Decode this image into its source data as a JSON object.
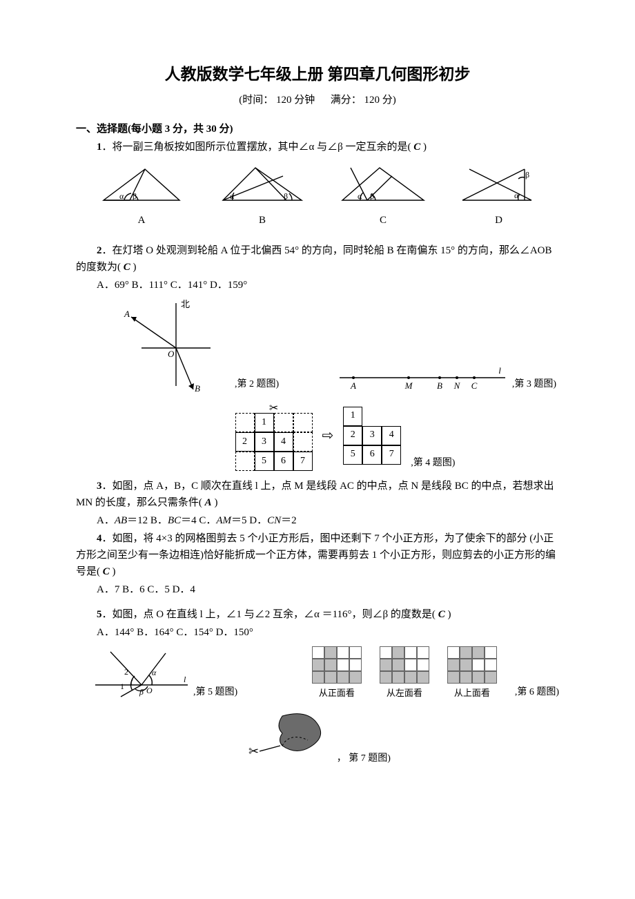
{
  "header": {
    "title": "人教版数学七年级上册  第四章几何图形初步",
    "meta_time_label": "(时间：",
    "meta_time_value": "120 分钟",
    "meta_score_label": "满分：",
    "meta_score_value": "120 分)"
  },
  "section1": {
    "title": "一、选择题(每小题 3 分，共 30 分)"
  },
  "q1": {
    "number": "1",
    "text": "．将一副三角板按如图所示位置摆放，其中∠α 与∠β 一定互余的是(   ",
    "answer": "C",
    "tail": "   )",
    "labels": {
      "A": "A",
      "B": "B",
      "C": "C",
      "D": "D"
    },
    "style": {
      "stroke": "#000000",
      "line_width": 1.4,
      "greek_alpha": "α",
      "greek_beta": "β"
    }
  },
  "q2": {
    "number": "2",
    "text": "．在灯塔 O 处观测到轮船 A 位于北偏西 54° 的方向，同时轮船 B 在南偏东 15° 的方向，那么∠AOB 的度数为(   ",
    "answer": "C",
    "tail": "   )",
    "opts": "A．69°     B．111°     C．141°     D．159°",
    "fig": {
      "north_label": "北",
      "A_label": "A",
      "B_label": "B",
      "O_label": "O",
      "caption": ",第 2 题图)",
      "stroke": "#000000"
    }
  },
  "q3": {
    "number": "3",
    "text": "．如图，点 A，B，C 顺次在直线 l 上，点 M 是线段 AC 的中点，点 N 是线段 BC 的中点，若想求出 MN 的长度，那么只需条件(   ",
    "answer": "A",
    "tail": "   )",
    "opts_parts": {
      "A": "A．",
      "A_it": "AB",
      "A_rest": "＝12   B．",
      "B_it": "BC",
      "B_rest": "＝4   C．",
      "C_it": "AM",
      "C_rest": "＝5   D．",
      "D_it": "CN",
      "D_rest": "＝2"
    },
    "fig": {
      "points": [
        "A",
        "M",
        "B",
        "N",
        "C"
      ],
      "line_label_l": "l",
      "caption": ",第 3 题图)",
      "stroke": "#000000"
    }
  },
  "q4": {
    "number": "4",
    "text": "．如图，将 4×3 的网格图剪去 5 个小正方形后，图中还剩下 7 个小正方形，为了使余下的部分  (小正方形之间至少有一条边相连)恰好能折成一个正方体，需要再剪去 1 个小正方形，则应剪去的小正方形的编号是(   ",
    "answer": "C",
    "tail": "   )",
    "opts": "A．7   B．6   C．5   D．4",
    "caption": ",第 4 题图)",
    "scissors": "✂",
    "arrow": "⇨",
    "left_grid": {
      "rows": 3,
      "cols": 4,
      "cells": [
        {
          "r": 0,
          "c": 0,
          "v": "",
          "style": "dashed"
        },
        {
          "r": 0,
          "c": 1,
          "v": "1",
          "style": "solid"
        },
        {
          "r": 0,
          "c": 2,
          "v": "",
          "style": "dashed"
        },
        {
          "r": 0,
          "c": 3,
          "v": "",
          "style": "dashed"
        },
        {
          "r": 1,
          "c": 0,
          "v": "2",
          "style": "solid"
        },
        {
          "r": 1,
          "c": 1,
          "v": "3",
          "style": "solid"
        },
        {
          "r": 1,
          "c": 2,
          "v": "4",
          "style": "solid"
        },
        {
          "r": 1,
          "c": 3,
          "v": "",
          "style": "dashed"
        },
        {
          "r": 2,
          "c": 0,
          "v": "",
          "style": "dashed"
        },
        {
          "r": 2,
          "c": 1,
          "v": "5",
          "style": "solid"
        },
        {
          "r": 2,
          "c": 2,
          "v": "6",
          "style": "solid"
        },
        {
          "r": 2,
          "c": 3,
          "v": "7",
          "style": "solid"
        }
      ]
    },
    "right_grid": {
      "rows": 3,
      "cols": 3,
      "cells": [
        {
          "r": 0,
          "c": 0,
          "v": "1"
        },
        {
          "r": 0,
          "c": 1,
          "v": ""
        },
        {
          "r": 0,
          "c": 2,
          "v": ""
        },
        {
          "r": 1,
          "c": 0,
          "v": "2"
        },
        {
          "r": 1,
          "c": 1,
          "v": "3"
        },
        {
          "r": 1,
          "c": 2,
          "v": "4"
        },
        {
          "r": 2,
          "c": 0,
          "v": "5"
        },
        {
          "r": 2,
          "c": 1,
          "v": "6"
        },
        {
          "r": 2,
          "c": 2,
          "v": "7"
        }
      ],
      "empty": [
        [
          0,
          1
        ],
        [
          0,
          2
        ]
      ]
    }
  },
  "q5": {
    "number": "5",
    "text": "．如图，点 O 在直线 l 上，∠1 与∠2 互余，∠α ＝116°，则∠β 的度数是(   ",
    "answer": "C",
    "tail": "   )",
    "opts": "A．144°     B．164°     C．154°     D．150°",
    "fig": {
      "labels": {
        "one": "1",
        "two": "2",
        "alpha": "α",
        "beta": "β",
        "O": "O",
        "l": "l"
      },
      "caption": ",第 5 题图)",
      "stroke": "#000000"
    }
  },
  "q6": {
    "caption": ",第 6 题图)",
    "views": [
      {
        "label": "从正面看",
        "rows": 3,
        "cols": 4,
        "fill": [
          [
            0,
            1
          ],
          [
            1,
            0
          ],
          [
            1,
            1
          ],
          [
            2,
            0
          ],
          [
            2,
            1
          ],
          [
            2,
            2
          ],
          [
            2,
            3
          ]
        ],
        "cell_color": "#bfbfbf",
        "line_color": "#666666"
      },
      {
        "label": "从左面看",
        "rows": 3,
        "cols": 4,
        "fill": [
          [
            0,
            1
          ],
          [
            1,
            0
          ],
          [
            1,
            1
          ],
          [
            2,
            0
          ],
          [
            2,
            1
          ],
          [
            2,
            2
          ],
          [
            2,
            3
          ]
        ],
        "cell_color": "#bfbfbf",
        "line_color": "#666666"
      },
      {
        "label": "从上面看",
        "rows": 3,
        "cols": 4,
        "fill": [
          [
            0,
            1
          ],
          [
            0,
            2
          ],
          [
            1,
            0
          ],
          [
            1,
            1
          ],
          [
            2,
            0
          ],
          [
            2,
            1
          ],
          [
            2,
            2
          ],
          [
            2,
            3
          ]
        ],
        "cell_color": "#bfbfbf",
        "line_color": "#666666"
      }
    ]
  },
  "q7": {
    "caption": "，  第 7 题图)",
    "scissors": "✂",
    "stroke": "#000000",
    "fill": "#6b6b6b"
  },
  "colors": {
    "text": "#000000",
    "background": "#ffffff",
    "grid_line": "#666666",
    "shaded_cell": "#bfbfbf"
  }
}
